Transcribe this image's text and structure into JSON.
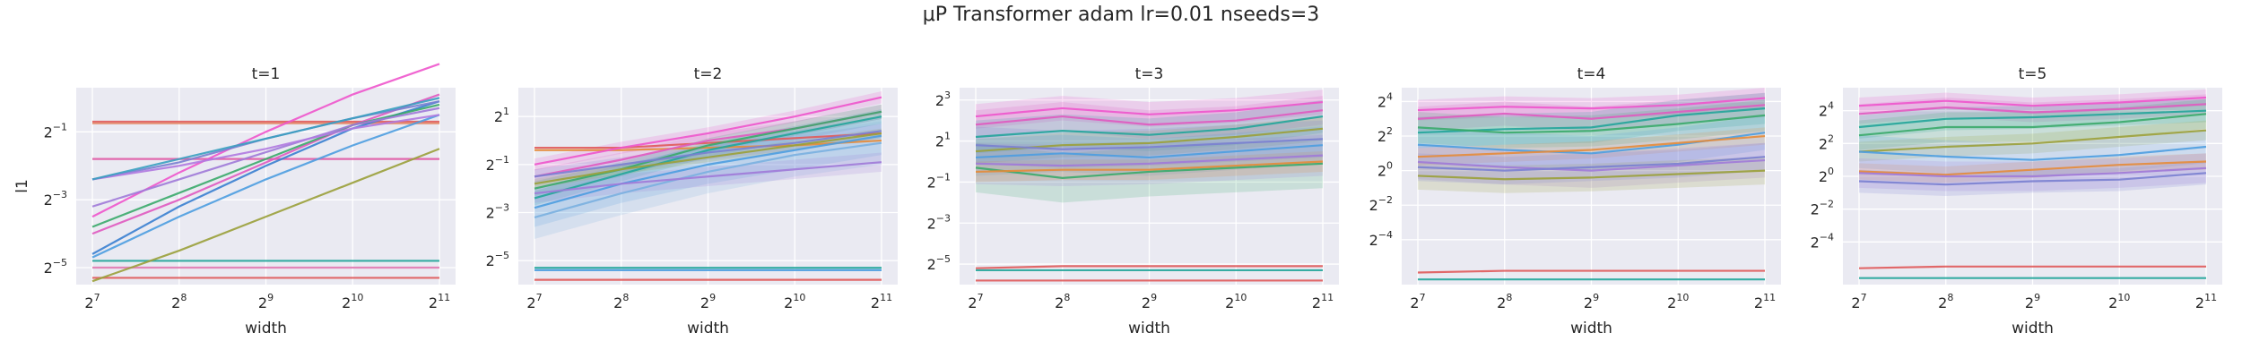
{
  "figure": {
    "title": "μP Transformer adam lr=0.01 nseeds=3"
  },
  "chart_data": [
    {
      "type": "line",
      "title": "t=1",
      "xlabel": "width",
      "ylabel": "l1",
      "x_exponents": [
        7,
        8,
        9,
        10,
        11
      ],
      "x_ticks": [
        "7",
        "8",
        "9",
        "10",
        "11"
      ],
      "y_tick_exponents": [
        -5,
        -3,
        -1
      ],
      "ylim_log2": [
        -5.5,
        0.3
      ],
      "grid": true,
      "legend": "none",
      "series": [
        {
          "color": "#e05a5a",
          "values_log2": [
            -0.7,
            -0.7,
            -0.7,
            -0.7,
            -0.7
          ]
        },
        {
          "color": "#e48b6a",
          "values_log2": [
            -0.75,
            -0.75,
            -0.75,
            -0.75,
            -0.75
          ]
        },
        {
          "color": "#e05a5a",
          "values_log2": [
            -5.3,
            -5.3,
            -5.3,
            -5.3,
            -5.3
          ]
        },
        {
          "color": "#e07ab0",
          "values_log2": [
            -5.0,
            -5.0,
            -5.0,
            -5.0,
            -5.0
          ]
        },
        {
          "color": "#22a59a",
          "values_log2": [
            -4.8,
            -4.8,
            -4.8,
            -4.8,
            -4.8
          ]
        },
        {
          "color": "#e05aa5",
          "values_log2": [
            -1.8,
            -1.8,
            -1.8,
            -1.8,
            -1.8
          ]
        },
        {
          "color": "#9aa03a",
          "values_log2": [
            -5.4,
            -4.5,
            -3.5,
            -2.5,
            -1.5
          ]
        },
        {
          "color": "#4d9de0",
          "values_log2": [
            -4.7,
            -3.5,
            -2.4,
            -1.4,
            -0.5
          ]
        },
        {
          "color": "#3a7fd0",
          "values_log2": [
            -4.6,
            -3.2,
            -2.0,
            -0.9,
            -0.1
          ]
        },
        {
          "color": "#e05ac0",
          "values_log2": [
            -4.0,
            -3.0,
            -1.9,
            -0.8,
            0.1
          ]
        },
        {
          "color": "#ee55cc",
          "values_log2": [
            -3.5,
            -2.2,
            -1.0,
            0.1,
            1.0
          ]
        },
        {
          "color": "#3aaa6a",
          "values_log2": [
            -3.8,
            -2.8,
            -1.8,
            -0.8,
            -0.2
          ]
        },
        {
          "color": "#a07ad8",
          "values_log2": [
            -3.2,
            -2.4,
            -1.6,
            -0.8,
            -0.3
          ]
        },
        {
          "color": "#7a7fd0",
          "values_log2": [
            -2.4,
            -1.9,
            -1.2,
            -0.6,
            -0.1
          ]
        },
        {
          "color": "#b07ae0",
          "values_log2": [
            -2.4,
            -2.0,
            -1.5,
            -0.9,
            -0.5
          ]
        },
        {
          "color": "#3aa0c0",
          "values_log2": [
            -2.4,
            -1.8,
            -1.2,
            -0.6,
            0.0
          ]
        }
      ]
    },
    {
      "type": "line",
      "title": "t=2",
      "xlabel": "width",
      "ylabel": "",
      "x_exponents": [
        7,
        8,
        9,
        10,
        11
      ],
      "x_ticks": [
        "7",
        "8",
        "9",
        "10",
        "11"
      ],
      "y_tick_exponents": [
        -5,
        -3,
        -1,
        1
      ],
      "ylim_log2": [
        -6.0,
        2.2
      ],
      "grid": true,
      "legend": "none",
      "series": [
        {
          "color": "#e05a5a",
          "values_log2": [
            -5.8,
            -5.8,
            -5.8,
            -5.8,
            -5.8
          ]
        },
        {
          "color": "#22a59a",
          "values_log2": [
            -5.3,
            -5.3,
            -5.3,
            -5.3,
            -5.3
          ]
        },
        {
          "color": "#4d9de0",
          "values_log2": [
            -5.4,
            -5.4,
            -5.4,
            -5.4,
            -5.4
          ]
        },
        {
          "color": "#e05a5a",
          "values_log2": [
            -0.3,
            -0.3,
            -0.1,
            0.1,
            0.3
          ]
        },
        {
          "color": "#e48b3a",
          "values_log2": [
            -0.4,
            -0.4,
            -0.3,
            -0.2,
            0.0
          ]
        },
        {
          "color": "#ee55cc",
          "values_log2": [
            -1.0,
            -0.3,
            0.3,
            1.0,
            1.8
          ],
          "band": 0.25
        },
        {
          "color": "#e05ac0",
          "values_log2": [
            -1.5,
            -0.8,
            0.0,
            0.5,
            1.2
          ],
          "band": 0.3
        },
        {
          "color": "#3aaa6a",
          "values_log2": [
            -2.0,
            -1.2,
            -0.2,
            0.5,
            1.2
          ],
          "band": 0.3
        },
        {
          "color": "#22a59a",
          "values_log2": [
            -2.4,
            -1.4,
            -0.4,
            0.3,
            1.0
          ],
          "band": 0.3
        },
        {
          "color": "#4d9de0",
          "values_log2": [
            -2.8,
            -1.8,
            -1.0,
            -0.4,
            0.2
          ],
          "band": 0.8
        },
        {
          "color": "#7ab0e0",
          "values_log2": [
            -3.2,
            -2.2,
            -1.3,
            -0.6,
            -0.1
          ],
          "band": 0.9
        },
        {
          "color": "#a07ad8",
          "values_log2": [
            -2.2,
            -1.8,
            -1.5,
            -1.2,
            -0.9
          ],
          "band": 0.4
        },
        {
          "color": "#9aa03a",
          "values_log2": [
            -1.8,
            -1.2,
            -0.7,
            -0.2,
            0.3
          ],
          "band": 0.2
        },
        {
          "color": "#7a7fd0",
          "values_log2": [
            -1.5,
            -1.0,
            -0.5,
            -0.1,
            0.4
          ],
          "band": 0.3
        }
      ]
    },
    {
      "type": "line",
      "title": "t=3",
      "xlabel": "width",
      "ylabel": "",
      "x_exponents": [
        7,
        8,
        9,
        10,
        11
      ],
      "x_ticks": [
        "7",
        "8",
        "9",
        "10",
        "11"
      ],
      "y_tick_exponents": [
        -5,
        -3,
        -1,
        1,
        3
      ],
      "ylim_log2": [
        -6.0,
        3.6
      ],
      "grid": true,
      "legend": "none",
      "series": [
        {
          "color": "#e05a5a",
          "values_log2": [
            -5.8,
            -5.8,
            -5.8,
            -5.8,
            -5.8
          ]
        },
        {
          "color": "#e05a5a",
          "values_log2": [
            -5.2,
            -5.1,
            -5.1,
            -5.1,
            -5.1
          ]
        },
        {
          "color": "#22a59a",
          "values_log2": [
            -5.3,
            -5.3,
            -5.3,
            -5.3,
            -5.3
          ]
        },
        {
          "color": "#ee55cc",
          "values_log2": [
            2.2,
            2.6,
            2.3,
            2.5,
            2.9
          ],
          "band": 0.6
        },
        {
          "color": "#e05ac0",
          "values_log2": [
            1.8,
            2.2,
            1.8,
            2.0,
            2.5
          ],
          "band": 0.7
        },
        {
          "color": "#22a59a",
          "values_log2": [
            1.2,
            1.5,
            1.3,
            1.6,
            2.2
          ],
          "band": 0.8
        },
        {
          "color": "#9aa03a",
          "values_log2": [
            0.5,
            0.8,
            0.9,
            1.2,
            1.6
          ],
          "band": 0.6
        },
        {
          "color": "#4d9de0",
          "values_log2": [
            0.2,
            0.4,
            0.2,
            0.5,
            0.8
          ],
          "band": 0.9
        },
        {
          "color": "#3aaa6a",
          "values_log2": [
            -0.3,
            -0.8,
            -0.5,
            -0.3,
            -0.1
          ],
          "band": 1.2
        },
        {
          "color": "#a07ad8",
          "values_log2": [
            -0.1,
            -0.2,
            -0.1,
            0.1,
            0.3
          ],
          "band": 1.0
        },
        {
          "color": "#e48b3a",
          "values_log2": [
            -0.5,
            -0.4,
            -0.4,
            -0.2,
            0.0
          ],
          "band": 0.5
        },
        {
          "color": "#7a7fd0",
          "values_log2": [
            0.8,
            0.6,
            0.7,
            0.9,
            1.1
          ],
          "band": 0.9
        }
      ]
    },
    {
      "type": "line",
      "title": "t=4",
      "xlabel": "width",
      "ylabel": "",
      "x_exponents": [
        7,
        8,
        9,
        10,
        11
      ],
      "x_ticks": [
        "7",
        "8",
        "9",
        "10",
        "11"
      ],
      "y_tick_exponents": [
        -4,
        -2,
        0,
        2,
        4
      ],
      "ylim_log2": [
        -6.6,
        4.8
      ],
      "grid": true,
      "legend": "none",
      "series": [
        {
          "color": "#e05a5a",
          "values_log2": [
            -5.9,
            -5.8,
            -5.8,
            -5.8,
            -5.8
          ]
        },
        {
          "color": "#22a59a",
          "values_log2": [
            -6.3,
            -6.3,
            -6.3,
            -6.3,
            -6.3
          ]
        },
        {
          "color": "#ee55cc",
          "values_log2": [
            3.5,
            3.7,
            3.6,
            3.8,
            4.2
          ],
          "band": 0.6
        },
        {
          "color": "#e05ac0",
          "values_log2": [
            3.0,
            3.3,
            3.0,
            3.4,
            3.8
          ],
          "band": 0.7
        },
        {
          "color": "#22a59a",
          "values_log2": [
            2.2,
            2.4,
            2.5,
            3.2,
            3.6
          ],
          "band": 0.9
        },
        {
          "color": "#3aaa6a",
          "values_log2": [
            2.5,
            2.2,
            2.3,
            2.7,
            3.2
          ],
          "band": 0.9
        },
        {
          "color": "#4d9de0",
          "values_log2": [
            1.5,
            1.2,
            1.0,
            1.5,
            2.2
          ],
          "band": 1.0
        },
        {
          "color": "#e48b3a",
          "values_log2": [
            0.8,
            1.0,
            1.2,
            1.6,
            2.0
          ],
          "band": 0.5
        },
        {
          "color": "#a07ad8",
          "values_log2": [
            0.5,
            0.2,
            0.0,
            0.3,
            0.6
          ],
          "band": 1.0
        },
        {
          "color": "#9aa03a",
          "values_log2": [
            -0.3,
            -0.5,
            -0.4,
            -0.2,
            0.0
          ],
          "band": 0.8
        },
        {
          "color": "#7a7fd0",
          "values_log2": [
            0.2,
            0.0,
            0.2,
            0.4,
            0.8
          ],
          "band": 0.8
        }
      ]
    },
    {
      "type": "line",
      "title": "t=5",
      "xlabel": "width",
      "ylabel": "",
      "x_exponents": [
        7,
        8,
        9,
        10,
        11
      ],
      "x_ticks": [
        "7",
        "8",
        "9",
        "10",
        "11"
      ],
      "y_tick_exponents": [
        -4,
        -2,
        0,
        2,
        4
      ],
      "ylim_log2": [
        -6.6,
        5.4
      ],
      "grid": true,
      "legend": "none",
      "series": [
        {
          "color": "#e05a5a",
          "values_log2": [
            -5.6,
            -5.5,
            -5.5,
            -5.5,
            -5.5
          ]
        },
        {
          "color": "#22a59a",
          "values_log2": [
            -6.2,
            -6.2,
            -6.2,
            -6.2,
            -6.2
          ]
        },
        {
          "color": "#ee55cc",
          "values_log2": [
            4.3,
            4.6,
            4.3,
            4.5,
            4.8
          ],
          "band": 0.5
        },
        {
          "color": "#e05ac0",
          "values_log2": [
            3.8,
            4.2,
            3.9,
            4.1,
            4.4
          ],
          "band": 0.6
        },
        {
          "color": "#22a59a",
          "values_log2": [
            3.0,
            3.5,
            3.6,
            3.8,
            4.0
          ],
          "band": 0.7
        },
        {
          "color": "#3aaa6a",
          "values_log2": [
            2.5,
            3.0,
            3.0,
            3.3,
            3.8
          ],
          "band": 0.9
        },
        {
          "color": "#9aa03a",
          "values_log2": [
            1.5,
            1.8,
            2.0,
            2.4,
            2.8
          ],
          "band": 0.6
        },
        {
          "color": "#4d9de0",
          "values_log2": [
            1.5,
            1.2,
            1.0,
            1.3,
            1.8
          ],
          "band": 1.0
        },
        {
          "color": "#e48b3a",
          "values_log2": [
            0.3,
            0.1,
            0.4,
            0.7,
            0.9
          ],
          "band": 0.5
        },
        {
          "color": "#a07ad8",
          "values_log2": [
            0.2,
            0.0,
            0.0,
            0.2,
            0.5
          ],
          "band": 0.9
        },
        {
          "color": "#7a7fd0",
          "values_log2": [
            -0.3,
            -0.5,
            -0.3,
            -0.2,
            0.2
          ],
          "band": 0.7
        }
      ]
    }
  ]
}
